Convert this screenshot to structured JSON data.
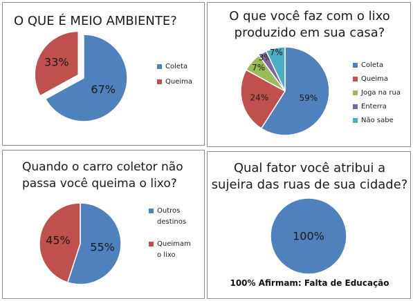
{
  "charts": [
    {
      "title_lines": [
        "O  QUE É MEIO AMBIENTE?"
      ],
      "chart_data": {
        "type": "pie",
        "title": "O  QUE É MEIO AMBIENTE?",
        "categories": [
          "Coleta",
          "Queima"
        ],
        "values": [
          67,
          33
        ],
        "data_labels": [
          "67%",
          "33%"
        ],
        "colors": [
          "#4F81BD",
          "#C0504D"
        ],
        "exploded": "Queima",
        "legend_position": "right"
      },
      "legend": [
        {
          "label_lines": [
            "Coleta"
          ],
          "color": "#4F81BD"
        },
        {
          "label_lines": [
            "Queima"
          ],
          "color": "#C0504D"
        }
      ]
    },
    {
      "title_lines": [
        "O que você faz com o lixo",
        "produzido em sua casa?"
      ],
      "chart_data": {
        "type": "pie",
        "title": "O que você faz com o lixo produzido em sua casa?",
        "categories": [
          "Coleta",
          "Queima",
          "Joga na rua",
          "Enterra",
          "Não sabe"
        ],
        "values": [
          59,
          24,
          7,
          3,
          7
        ],
        "data_labels": [
          "59%",
          "24%",
          "7%",
          "3%",
          "7%"
        ],
        "colors": [
          "#4F81BD",
          "#C0504D",
          "#9BBB59",
          "#8064A2",
          "#4BACC6"
        ],
        "legend_position": "right"
      },
      "legend": [
        {
          "label_lines": [
            "Coleta"
          ],
          "color": "#4F81BD"
        },
        {
          "label_lines": [
            "Queima"
          ],
          "color": "#C0504D"
        },
        {
          "label_lines": [
            "Joga na rua"
          ],
          "color": "#9BBB59"
        },
        {
          "label_lines": [
            "Enterra"
          ],
          "color": "#8064A2"
        },
        {
          "label_lines": [
            "Não sabe"
          ],
          "color": "#4BACC6"
        }
      ]
    },
    {
      "title_lines": [
        "Quando o carro coletor não",
        "passa você queima o lixo?"
      ],
      "chart_data": {
        "type": "pie",
        "title": "Quando o carro coletor não passa você queima o lixo?",
        "categories": [
          "Outros destinos",
          "Queimam o lixo"
        ],
        "values": [
          55,
          45
        ],
        "data_labels": [
          "55%",
          "45%"
        ],
        "colors": [
          "#4F81BD",
          "#C0504D"
        ],
        "legend_position": "right"
      },
      "legend": [
        {
          "label_lines": [
            "Outros",
            "destinos"
          ],
          "color": "#4F81BD"
        },
        {
          "label_lines": [
            "Queimam",
            "o lixo"
          ],
          "color": "#C0504D"
        }
      ]
    },
    {
      "title_lines": [
        "Qual fator você atribui a",
        "sujeira das ruas de sua cidade?"
      ],
      "chart_data": {
        "type": "pie",
        "title": "Qual fator você atribui a sujeira das ruas de sua cidade?",
        "categories": [
          "Falta de Educação"
        ],
        "values": [
          100
        ],
        "data_labels": [
          "100%"
        ],
        "colors": [
          "#4F81BD"
        ]
      },
      "note": "100% Afirmam: Falta de Educação"
    }
  ]
}
